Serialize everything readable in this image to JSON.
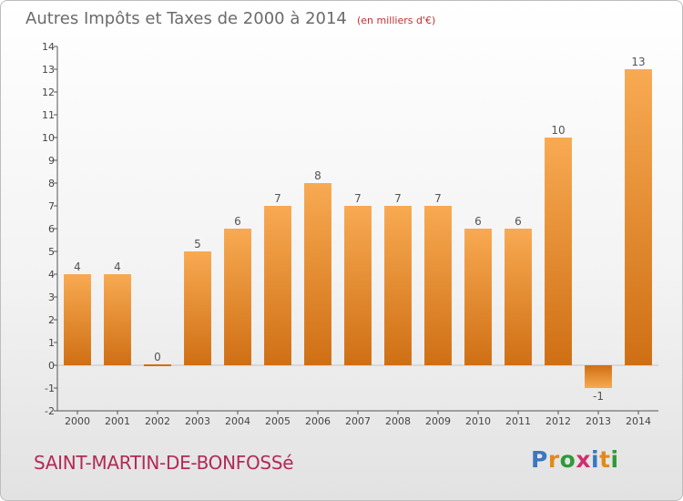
{
  "header": {
    "title": "Autres Impôts et Taxes de 2000 à 2014",
    "subtitle": "(en milliers d'€)"
  },
  "footer": {
    "town": "SAINT-MARTIN-DE-BONFOSSé",
    "brand_letters": [
      "P",
      "r",
      "o",
      "x",
      "i",
      "t",
      "i"
    ],
    "brand_colors": [
      "#3a78c0",
      "#e08a1e",
      "#2f9a3a",
      "#d02f6e",
      "#3a78c0",
      "#e08a1e",
      "#2f9a3a"
    ]
  },
  "chart_data": {
    "type": "bar",
    "title": "Autres Impôts et Taxes de 2000 à 2014",
    "subtitle": "(en milliers d'€)",
    "categories": [
      "2000",
      "2001",
      "2002",
      "2003",
      "2004",
      "2005",
      "2006",
      "2007",
      "2008",
      "2009",
      "2010",
      "2011",
      "2012",
      "2013",
      "2014"
    ],
    "values": [
      4,
      4,
      0,
      5,
      6,
      7,
      8,
      7,
      7,
      7,
      6,
      6,
      10,
      -1,
      13
    ],
    "value_labels": [
      "4",
      "4",
      "0",
      "5",
      "6",
      "7",
      "8",
      "7",
      "7",
      "7",
      "6",
      "6",
      "10",
      "-1",
      "13"
    ],
    "y_ticks": [
      "-2",
      "-1",
      "0",
      "1",
      "2",
      "3",
      "4",
      "5",
      "6",
      "7",
      "8",
      "9",
      "10",
      "11",
      "12",
      "13",
      "14"
    ],
    "ylim": [
      -2,
      14
    ],
    "grid": false,
    "bar_color_top": "#f8aa52",
    "bar_color_bottom": "#cf6f14"
  }
}
